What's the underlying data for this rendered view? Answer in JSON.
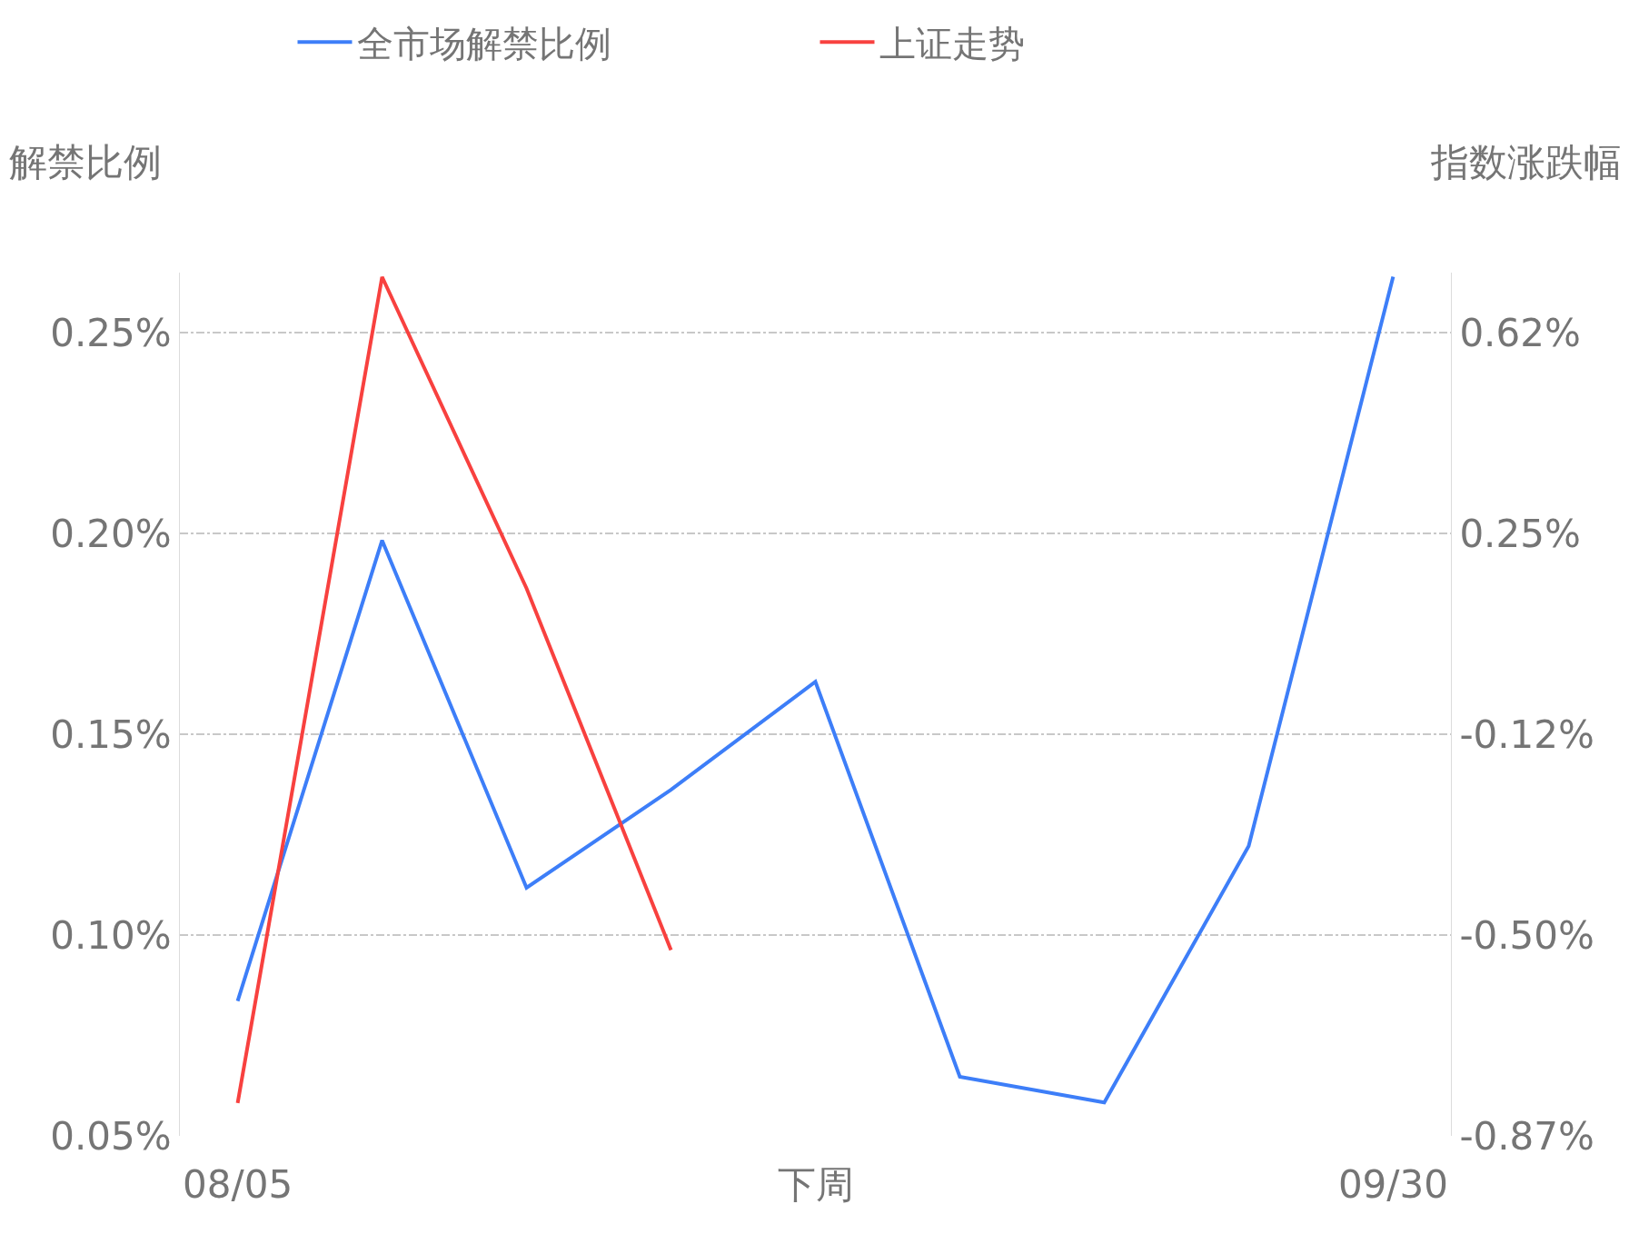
{
  "chart_data": {
    "type": "line",
    "ylabel": "解禁比例",
    "y2label": "指数涨跌幅",
    "categories": [
      "08/05",
      null,
      null,
      null,
      "下周",
      null,
      null,
      null,
      "09/30"
    ],
    "series": [
      {
        "name": "全市场解禁比例",
        "color": "#3d7ef8",
        "values": [
          0.0836,
          0.1983,
          0.1118,
          0.1362,
          0.1631,
          0.0647,
          0.0583,
          0.1222,
          0.264
        ]
      },
      {
        "name": "上证走势",
        "color": "#f8413f",
        "axis": "y2",
        "values": [
          -0.809,
          0.724,
          0.146,
          -0.525,
          null,
          null,
          null,
          null,
          null
        ]
      }
    ],
    "ylim": [
      0.05,
      0.265
    ],
    "yticks": [
      {
        "value": 0.05,
        "label": "0.05%"
      },
      {
        "value": 0.1,
        "label": "0.10%"
      },
      {
        "value": 0.15,
        "label": "0.15%"
      },
      {
        "value": 0.2,
        "label": "0.20%"
      },
      {
        "value": 0.25,
        "label": "0.25%"
      }
    ],
    "y2lim": [
      -0.87,
      0.732
    ],
    "y2ticks": [
      {
        "value": -0.87,
        "label": "-0.87%"
      },
      {
        "value": -0.4975,
        "label": "-0.50%"
      },
      {
        "value": -0.125,
        "label": "-0.12%"
      },
      {
        "value": 0.2475,
        "label": "0.25%"
      },
      {
        "value": 0.62,
        "label": "0.62%"
      }
    ],
    "grid": "y",
    "legend": "top",
    "marker": "none",
    "line_style": "solid"
  }
}
